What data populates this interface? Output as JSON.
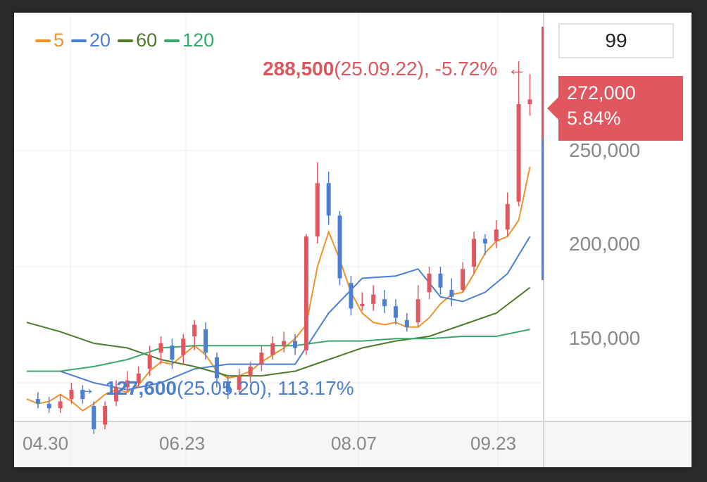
{
  "legend": [
    {
      "label": "5",
      "color": "#f0922a"
    },
    {
      "label": "20",
      "color": "#4b7fd1"
    },
    {
      "label": "60",
      "color": "#4e7a2a"
    },
    {
      "label": "120",
      "color": "#3aa86b"
    }
  ],
  "zoom_value": "99",
  "current_price": {
    "value": "272,000",
    "change": "5.84%",
    "color": "#e0575f"
  },
  "high_annotation": {
    "value": "288,500",
    "detail": "(25.09.22), -5.72%",
    "arrow": "←"
  },
  "low_annotation": {
    "value": "127,600",
    "detail": "(25.05.20), 113.17%",
    "arrow": "→"
  },
  "chart_data": {
    "type": "candlestick",
    "y_ticks": [
      "250,000",
      "200,000",
      "150,000"
    ],
    "x_ticks": [
      "04.30",
      "06.23",
      "08.07",
      "09.23"
    ],
    "ylim": [
      110000,
      300000
    ],
    "up_color": "#e0575f",
    "down_color": "#4b7fd1",
    "series": [
      {
        "name": "5",
        "color": "#f0922a",
        "values": [
          [
            0,
            143000
          ],
          [
            5,
            141000
          ],
          [
            10,
            142000
          ],
          [
            15,
            145000
          ],
          [
            20,
            142000
          ],
          [
            25,
            138000
          ],
          [
            30,
            141000
          ],
          [
            35,
            145000
          ],
          [
            40,
            147000
          ],
          [
            45,
            146000
          ],
          [
            50,
            149000
          ],
          [
            55,
            155000
          ],
          [
            60,
            159000
          ],
          [
            65,
            158000
          ],
          [
            70,
            162000
          ],
          [
            75,
            166000
          ],
          [
            80,
            162000
          ],
          [
            85,
            155000
          ],
          [
            90,
            152000
          ],
          [
            95,
            153000
          ],
          [
            100,
            155000
          ],
          [
            105,
            159000
          ],
          [
            110,
            162000
          ],
          [
            115,
            165000
          ],
          [
            120,
            169000
          ],
          [
            125,
            175000
          ],
          [
            130,
            200000
          ],
          [
            135,
            215000
          ],
          [
            140,
            203000
          ],
          [
            145,
            189000
          ],
          [
            150,
            180000
          ],
          [
            155,
            176000
          ],
          [
            160,
            175000
          ],
          [
            165,
            176000
          ],
          [
            170,
            174000
          ],
          [
            175,
            174000
          ],
          [
            180,
            178000
          ],
          [
            185,
            184000
          ],
          [
            190,
            188000
          ],
          [
            195,
            189000
          ],
          [
            200,
            197000
          ],
          [
            205,
            206000
          ],
          [
            210,
            211000
          ],
          [
            215,
            213000
          ],
          [
            220,
            220000
          ],
          [
            225,
            243000
          ]
        ]
      },
      {
        "name": "20",
        "color": "#4b7fd1",
        "values": [
          [
            0,
            155000
          ],
          [
            15,
            155000
          ],
          [
            30,
            150000
          ],
          [
            45,
            147000
          ],
          [
            60,
            150000
          ],
          [
            75,
            156000
          ],
          [
            90,
            158000
          ],
          [
            105,
            158000
          ],
          [
            120,
            158000
          ],
          [
            135,
            180000
          ],
          [
            150,
            195000
          ],
          [
            165,
            196000
          ],
          [
            175,
            199000
          ],
          [
            185,
            187000
          ],
          [
            195,
            185000
          ],
          [
            205,
            189000
          ],
          [
            215,
            197000
          ],
          [
            225,
            213000
          ]
        ]
      },
      {
        "name": "60",
        "color": "#4e7a2a",
        "values": [
          [
            0,
            176000
          ],
          [
            15,
            172000
          ],
          [
            30,
            167000
          ],
          [
            45,
            165000
          ],
          [
            60,
            160000
          ],
          [
            75,
            157000
          ],
          [
            90,
            153000
          ],
          [
            105,
            153000
          ],
          [
            120,
            155000
          ],
          [
            135,
            160000
          ],
          [
            150,
            165000
          ],
          [
            165,
            168000
          ],
          [
            180,
            170000
          ],
          [
            195,
            175000
          ],
          [
            210,
            180000
          ],
          [
            225,
            191000
          ]
        ]
      },
      {
        "name": "120",
        "color": "#3aa86b",
        "values": [
          [
            0,
            155000
          ],
          [
            15,
            155000
          ],
          [
            30,
            157000
          ],
          [
            45,
            160000
          ],
          [
            60,
            165000
          ],
          [
            75,
            166000
          ],
          [
            90,
            166000
          ],
          [
            105,
            166000
          ],
          [
            120,
            166000
          ],
          [
            135,
            168000
          ],
          [
            150,
            168000
          ],
          [
            165,
            169000
          ],
          [
            180,
            169000
          ],
          [
            195,
            170000
          ],
          [
            210,
            170000
          ],
          [
            225,
            173000
          ]
        ]
      }
    ],
    "candles": [
      [
        5,
        143000,
        141000,
        146000,
        139000
      ],
      [
        10,
        141000,
        139000,
        144000,
        137000
      ],
      [
        15,
        139000,
        142000,
        145000,
        137000
      ],
      [
        20,
        143000,
        147000,
        150000,
        141000
      ],
      [
        25,
        147000,
        143000,
        149000,
        141000
      ],
      [
        30,
        140000,
        130000,
        142000,
        128000
      ],
      [
        35,
        132000,
        140000,
        142000,
        130000
      ],
      [
        40,
        142000,
        148000,
        151000,
        140000
      ],
      [
        45,
        148000,
        151000,
        155000,
        146000
      ],
      [
        50,
        150000,
        154000,
        157000,
        148000
      ],
      [
        55,
        156000,
        162000,
        166000,
        153000
      ],
      [
        60,
        163000,
        167000,
        170000,
        158000
      ],
      [
        65,
        166000,
        160000,
        169000,
        156000
      ],
      [
        70,
        162000,
        169000,
        171000,
        158000
      ],
      [
        75,
        170000,
        175000,
        177000,
        164000
      ],
      [
        80,
        173000,
        163000,
        176000,
        160000
      ],
      [
        85,
        161000,
        152000,
        163000,
        148000
      ],
      [
        90,
        150000,
        146000,
        153000,
        143000
      ],
      [
        95,
        147000,
        153000,
        156000,
        145000
      ],
      [
        100,
        153000,
        157000,
        159000,
        150000
      ],
      [
        105,
        158000,
        163000,
        166000,
        155000
      ],
      [
        110,
        162000,
        167000,
        170000,
        160000
      ],
      [
        115,
        166000,
        168000,
        172000,
        163000
      ],
      [
        120,
        168000,
        165000,
        171000,
        162000
      ],
      [
        125,
        164000,
        213000,
        214000,
        162000
      ],
      [
        130,
        213000,
        236000,
        245000,
        210000
      ],
      [
        135,
        236000,
        222000,
        241000,
        218000
      ],
      [
        140,
        222000,
        195000,
        224000,
        192000
      ],
      [
        145,
        193000,
        182000,
        196000,
        179000
      ],
      [
        150,
        183000,
        184000,
        189000,
        181000
      ],
      [
        155,
        184000,
        188000,
        192000,
        181000
      ],
      [
        160,
        186000,
        183000,
        190000,
        180000
      ],
      [
        165,
        183000,
        178000,
        186000,
        175000
      ],
      [
        170,
        177000,
        174000,
        180000,
        172000
      ],
      [
        175,
        176000,
        186000,
        192000,
        174000
      ],
      [
        180,
        189000,
        197000,
        200000,
        186000
      ],
      [
        185,
        197000,
        191000,
        200000,
        188000
      ],
      [
        190,
        190000,
        187000,
        195000,
        183000
      ],
      [
        195,
        190000,
        199000,
        202000,
        189000
      ],
      [
        200,
        200000,
        212000,
        215000,
        197000
      ],
      [
        205,
        212000,
        210000,
        214000,
        205000
      ],
      [
        210,
        211000,
        216000,
        220000,
        208000
      ],
      [
        215,
        216000,
        227000,
        232000,
        213000
      ],
      [
        220,
        228000,
        270000,
        288500,
        226000
      ],
      [
        225,
        270000,
        272000,
        283000,
        265000
      ]
    ]
  }
}
